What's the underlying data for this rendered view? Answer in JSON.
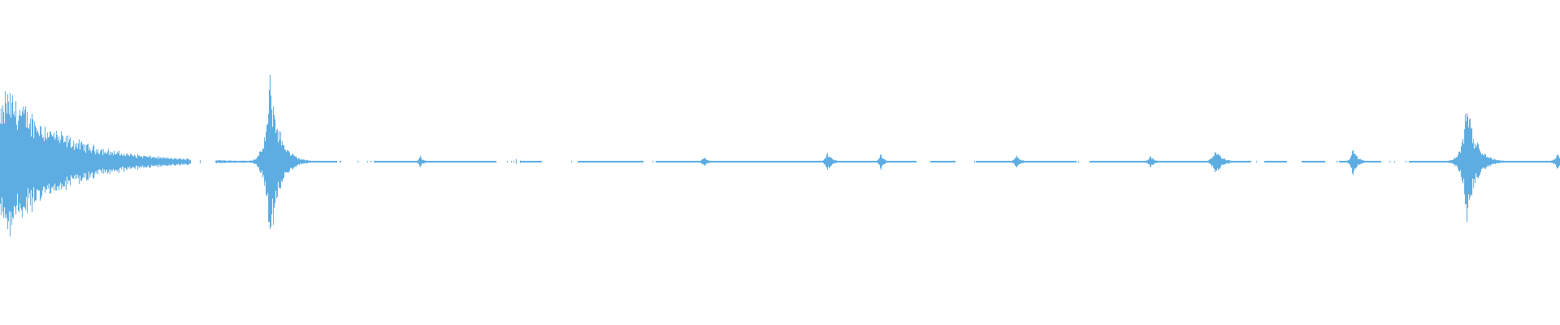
{
  "chart_data": {
    "type": "waveform",
    "color": "#5DADE2",
    "background": "#FFFFFF",
    "time_range": [
      0,
      1
    ],
    "amplitude_range": [
      -1,
      1
    ],
    "bursts": [
      {
        "t": 0.004,
        "amp": 0.46,
        "decay": 0.018
      },
      {
        "t": 0.173,
        "amp": 0.53,
        "decay": 0.006
      },
      {
        "t": 0.269,
        "amp": 0.04,
        "decay": 0.002
      },
      {
        "t": 0.331,
        "amp": 0.02,
        "decay": 0.003
      },
      {
        "t": 0.451,
        "amp": 0.03,
        "decay": 0.003
      },
      {
        "t": 0.53,
        "amp": 0.06,
        "decay": 0.003
      },
      {
        "t": 0.564,
        "amp": 0.06,
        "decay": 0.002
      },
      {
        "t": 0.651,
        "amp": 0.04,
        "decay": 0.003
      },
      {
        "t": 0.737,
        "amp": 0.04,
        "decay": 0.003
      },
      {
        "t": 0.779,
        "amp": 0.09,
        "decay": 0.004
      },
      {
        "t": 0.867,
        "amp": 0.09,
        "decay": 0.003
      },
      {
        "t": 0.94,
        "amp": 0.36,
        "decay": 0.006
      },
      {
        "t": 0.998,
        "amp": 0.05,
        "decay": 0.004
      }
    ],
    "silent_gaps": [
      [
        0.122,
        0.138
      ],
      [
        0.216,
        0.24
      ],
      [
        0.318,
        0.333
      ],
      [
        0.347,
        0.37
      ],
      [
        0.412,
        0.42
      ],
      [
        0.587,
        0.596
      ],
      [
        0.612,
        0.625
      ],
      [
        0.69,
        0.698
      ],
      [
        0.802,
        0.81
      ],
      [
        0.825,
        0.834
      ],
      [
        0.849,
        0.858
      ],
      [
        0.885,
        0.903
      ]
    ]
  }
}
